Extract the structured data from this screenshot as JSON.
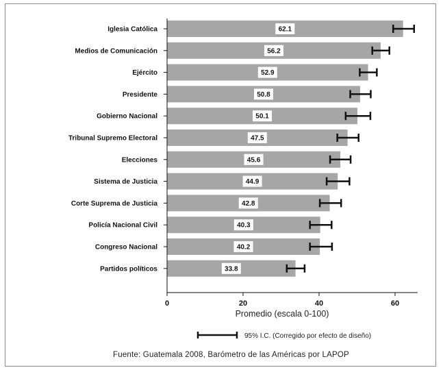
{
  "chart_data": {
    "type": "bar",
    "orientation": "horizontal",
    "categories": [
      "Iglesia Católica",
      "Medios de Comunicación",
      "Ejército",
      "Presidente",
      "Gobierno Nacional",
      "Tribunal Supremo Electoral",
      "Elecciones",
      "Sistema de Justicia",
      "Corte Suprema de Justicia",
      "Policía Nacional Civil",
      "Congreso Nacional",
      "Partidos políticos"
    ],
    "values": [
      62.1,
      56.2,
      52.9,
      50.8,
      50.1,
      47.5,
      45.6,
      44.9,
      42.8,
      40.3,
      40.2,
      33.8
    ],
    "value_labels": [
      "62.1",
      "56.2",
      "52.9",
      "50.8",
      "50.1",
      "47.5",
      "45.6",
      "44.9",
      "42.8",
      "40.3",
      "40.2",
      "33.8"
    ],
    "error_low": [
      59.5,
      54.0,
      50.7,
      48.2,
      47.0,
      44.8,
      42.9,
      42.0,
      40.2,
      37.6,
      37.6,
      31.5
    ],
    "error_high": [
      65.0,
      58.5,
      55.2,
      53.6,
      53.5,
      50.4,
      48.3,
      48.0,
      45.8,
      43.3,
      43.4,
      36.2
    ],
    "xlim": [
      0,
      65
    ],
    "xticks": [
      0,
      20,
      40,
      60
    ],
    "xtick_labels": [
      "0",
      "20",
      "40",
      "60"
    ],
    "xlabel": "Promedio (escala 0-100)",
    "ylabel": "",
    "title": "",
    "grid": false,
    "bar_color": "#a6a6a6",
    "error_bar_color": "#111111"
  },
  "legend": {
    "text": "95% I.C. (Corregido por efecto de diseño)"
  },
  "source": "Fuente: Guatemala 2008, Barómetro de las Américas por LAPOP"
}
